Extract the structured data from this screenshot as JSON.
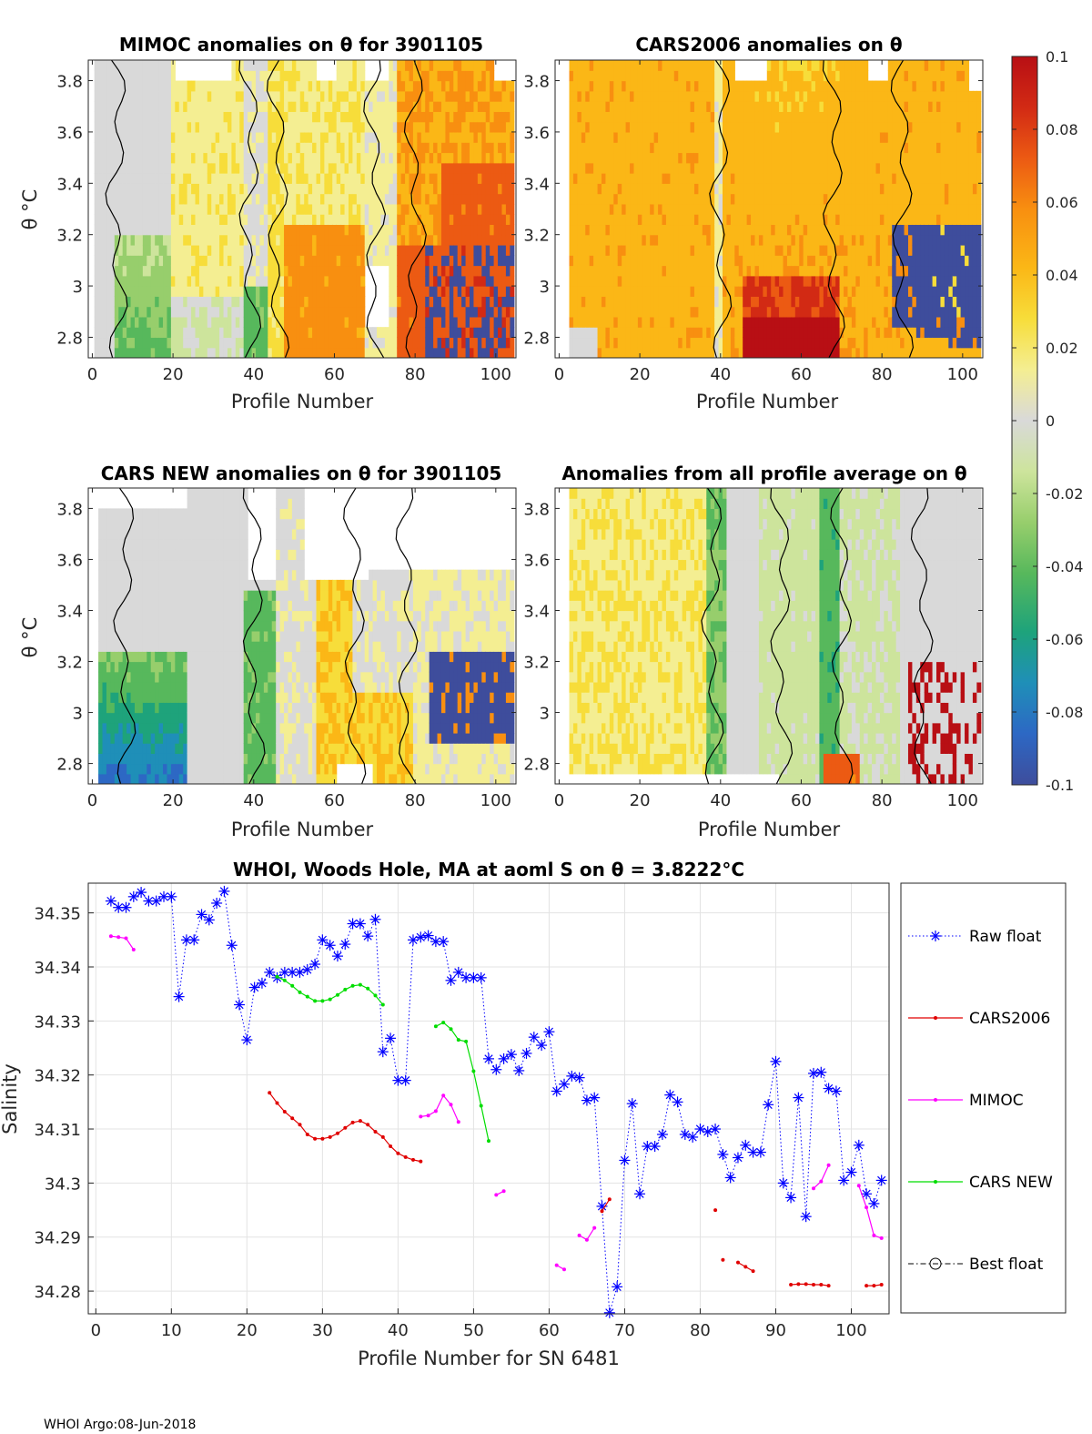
{
  "footer": "WHOI Argo:08-Jun-2018",
  "chart_data": [
    {
      "id": "p1",
      "type": "heatmap",
      "title": "MIMOC anomalies on θ  for 3901105",
      "xlabel": "Profile Number",
      "ylabel": "θ °C",
      "xlim": [
        -1,
        105
      ],
      "ylim": [
        2.72,
        3.88
      ],
      "xticks": [
        0,
        20,
        40,
        60,
        80,
        100
      ],
      "yticks": [
        2.8,
        3,
        3.2,
        3.4,
        3.6,
        3.8
      ],
      "ytick_labels": [
        "2.8",
        "3",
        "3.2",
        "3.4",
        "3.6",
        "3.8"
      ],
      "colorbar_range": [
        -0.1,
        0.1
      ]
    },
    {
      "id": "p2",
      "type": "heatmap",
      "title": "CARS2006 anomalies on θ",
      "xlabel": "Profile Number",
      "ylabel": "",
      "xlim": [
        -1,
        105
      ],
      "ylim": [
        2.72,
        3.88
      ],
      "xticks": [
        0,
        20,
        40,
        60,
        80,
        100
      ],
      "yticks": [
        2.8,
        3,
        3.2,
        3.4,
        3.6,
        3.8
      ],
      "ytick_labels": [
        "2.8",
        "3",
        "3.2",
        "3.4",
        "3.6",
        "3.8"
      ],
      "colorbar_range": [
        -0.1,
        0.1
      ]
    },
    {
      "id": "p3",
      "type": "heatmap",
      "title": "CARS NEW anomalies on θ for 3901105",
      "xlabel": "Profile Number",
      "ylabel": "θ °C",
      "xlim": [
        -1,
        105
      ],
      "ylim": [
        2.72,
        3.88
      ],
      "xticks": [
        0,
        20,
        40,
        60,
        80,
        100
      ],
      "yticks": [
        2.8,
        3,
        3.2,
        3.4,
        3.6,
        3.8
      ],
      "ytick_labels": [
        "2.8",
        "3",
        "3.2",
        "3.4",
        "3.6",
        "3.8"
      ],
      "colorbar_range": [
        -0.1,
        0.1
      ]
    },
    {
      "id": "p4",
      "type": "heatmap",
      "title": "Anomalies from all profile average on θ",
      "xlabel": "Profile Number",
      "ylabel": "",
      "xlim": [
        -1,
        105
      ],
      "ylim": [
        2.72,
        3.88
      ],
      "xticks": [
        0,
        20,
        40,
        60,
        80,
        100
      ],
      "yticks": [
        2.8,
        3,
        3.2,
        3.4,
        3.6,
        3.8
      ],
      "ytick_labels": [
        "2.8",
        "3",
        "3.2",
        "3.4",
        "3.6",
        "3.8"
      ],
      "colorbar_range": [
        -0.1,
        0.1
      ]
    },
    {
      "id": "colorbar",
      "type": "colorbar",
      "range": [
        -0.1,
        0.1
      ],
      "ticks": [
        0.1,
        0.08,
        0.06,
        0.04,
        0.02,
        0,
        -0.02,
        -0.04,
        -0.06,
        -0.08,
        -0.1
      ],
      "tick_labels": [
        "0.1",
        "0.08",
        "0.06",
        "0.04",
        "0.02",
        "0",
        "-0.02",
        "-0.04",
        "-0.06",
        "-0.08",
        "-0.1"
      ],
      "colormap": [
        "#3e4d9c",
        "#2d68c4",
        "#1f8fb8",
        "#1ea37b",
        "#57b85c",
        "#97ce6c",
        "#cde49c",
        "#d9d9d9",
        "#f4ee92",
        "#f7dd3a",
        "#fbb716",
        "#f88f10",
        "#ec5a13",
        "#d22a14",
        "#b80f14"
      ]
    },
    {
      "id": "p5",
      "type": "line",
      "title": "WHOI, Woods Hole, MA at aoml S on θ = 3.8222°C",
      "xlabel": "Profile Number for SN 6481",
      "ylabel": "Salinity",
      "xlim": [
        -1,
        105
      ],
      "ylim": [
        34.2758,
        34.3555
      ],
      "xticks": [
        0,
        10,
        20,
        30,
        40,
        50,
        60,
        70,
        80,
        90,
        100
      ],
      "yticks": [
        34.28,
        34.29,
        34.3,
        34.31,
        34.32,
        34.33,
        34.34,
        34.35
      ],
      "ytick_labels": [
        "34.28",
        "34.29",
        "34.3",
        "34.31",
        "34.32",
        "34.33",
        "34.34",
        "34.35"
      ],
      "legend_position": "outside-right",
      "series": [
        {
          "name": "Raw float",
          "color": "#0000ff",
          "style": "dotted-star",
          "points": [
            [
              2,
              34.3522
            ],
            [
              3,
              34.351
            ],
            [
              4,
              34.351
            ],
            [
              5,
              34.353
            ],
            [
              6,
              34.3538
            ],
            [
              7,
              34.3522
            ],
            [
              8,
              34.3522
            ],
            [
              9,
              34.353
            ],
            [
              10,
              34.353
            ],
            [
              11,
              34.3345
            ],
            [
              12,
              34.345
            ],
            [
              13,
              34.345
            ],
            [
              14,
              34.3497
            ],
            [
              15,
              34.3487
            ],
            [
              16,
              34.3518
            ],
            [
              17,
              34.354
            ],
            [
              18,
              34.344
            ],
            [
              19,
              34.333
            ],
            [
              20,
              34.3265
            ],
            [
              21,
              34.3362
            ],
            [
              22,
              34.337
            ],
            [
              23,
              34.339
            ],
            [
              24,
              34.338
            ],
            [
              25,
              34.339
            ],
            [
              26,
              34.339
            ],
            [
              27,
              34.339
            ],
            [
              28,
              34.3395
            ],
            [
              29,
              34.3405
            ],
            [
              30,
              34.345
            ],
            [
              31,
              34.344
            ],
            [
              32,
              34.342
            ],
            [
              33,
              34.3442
            ],
            [
              34,
              34.348
            ],
            [
              35,
              34.348
            ],
            [
              36,
              34.3457
            ],
            [
              37,
              34.3488
            ],
            [
              38,
              34.3243
            ],
            [
              39,
              34.3268
            ],
            [
              40,
              34.319
            ],
            [
              41,
              34.319
            ],
            [
              42,
              34.345
            ],
            [
              43,
              34.3455
            ],
            [
              44,
              34.3458
            ],
            [
              45,
              34.3447
            ],
            [
              46,
              34.3447
            ],
            [
              47,
              34.3375
            ],
            [
              48,
              34.339
            ],
            [
              49,
              34.338
            ],
            [
              50,
              34.338
            ],
            [
              51,
              34.338
            ],
            [
              52,
              34.323
            ],
            [
              53,
              34.321
            ],
            [
              54,
              34.323
            ],
            [
              55,
              34.3238
            ],
            [
              56,
              34.3208
            ],
            [
              57,
              34.324
            ],
            [
              58,
              34.327
            ],
            [
              59,
              34.3255
            ],
            [
              60,
              34.328
            ],
            [
              61,
              34.317
            ],
            [
              62,
              34.3183
            ],
            [
              63,
              34.3198
            ],
            [
              64,
              34.3195
            ],
            [
              65,
              34.3153
            ],
            [
              66,
              34.3158
            ],
            [
              67,
              34.2957
            ],
            [
              68,
              34.276
            ],
            [
              69,
              34.2808
            ],
            [
              70,
              34.3042
            ],
            [
              71,
              34.3147
            ],
            [
              72,
              34.298
            ],
            [
              73,
              34.3068
            ],
            [
              74,
              34.3068
            ],
            [
              75,
              34.309
            ],
            [
              76,
              34.3163
            ],
            [
              77,
              34.315
            ],
            [
              78,
              34.309
            ],
            [
              79,
              34.3085
            ],
            [
              80,
              34.31
            ],
            [
              81,
              34.3095
            ],
            [
              82,
              34.31
            ],
            [
              83,
              34.3053
            ],
            [
              84,
              34.301
            ],
            [
              85,
              34.3047
            ],
            [
              86,
              34.307
            ],
            [
              87,
              34.3057
            ],
            [
              88,
              34.3057
            ],
            [
              89,
              34.3145
            ],
            [
              90,
              34.3225
            ],
            [
              91,
              34.3
            ],
            [
              92,
              34.2973
            ],
            [
              93,
              34.3158
            ],
            [
              94,
              34.2938
            ],
            [
              95,
              34.3203
            ],
            [
              96,
              34.3205
            ],
            [
              97,
              34.3175
            ],
            [
              98,
              34.317
            ],
            [
              99,
              34.3005
            ],
            [
              100,
              34.302
            ],
            [
              101,
              34.307
            ],
            [
              102,
              34.298
            ],
            [
              103,
              34.2962
            ],
            [
              104,
              34.3005
            ]
          ]
        },
        {
          "name": "CARS2006",
          "color": "#e00000",
          "style": "solid-dot",
          "segments": [
            [
              [
                23,
                34.3167
              ],
              [
                24,
                34.3148
              ],
              [
                25,
                34.3132
              ],
              [
                26,
                34.312
              ],
              [
                27,
                34.3108
              ],
              [
                28,
                34.309
              ],
              [
                29,
                34.3082
              ],
              [
                30,
                34.3082
              ],
              [
                31,
                34.3085
              ],
              [
                32,
                34.3092
              ],
              [
                33,
                34.3102
              ],
              [
                34,
                34.3112
              ],
              [
                35,
                34.3115
              ],
              [
                36,
                34.3108
              ],
              [
                37,
                34.3095
              ],
              [
                38,
                34.3085
              ],
              [
                39,
                34.3068
              ],
              [
                40,
                34.3055
              ],
              [
                41,
                34.3048
              ],
              [
                42,
                34.3043
              ],
              [
                43,
                34.304
              ]
            ],
            [
              [
                67,
                34.2948
              ],
              [
                68,
                34.297
              ]
            ],
            [
              [
                82,
                34.295
              ]
            ],
            [
              [
                83,
                34.2858
              ]
            ],
            [
              [
                85,
                34.2853
              ],
              [
                86,
                34.2845
              ],
              [
                87,
                34.2837
              ]
            ],
            [
              [
                92,
                34.2812
              ],
              [
                93,
                34.2813
              ],
              [
                94,
                34.2813
              ],
              [
                95,
                34.2812
              ],
              [
                96,
                34.2812
              ],
              [
                97,
                34.281
              ]
            ],
            [
              [
                102,
                34.281
              ],
              [
                103,
                34.281
              ],
              [
                104,
                34.2812
              ]
            ]
          ]
        },
        {
          "name": "MIMOC",
          "color": "#ff00ff",
          "style": "solid-dot",
          "segments": [
            [
              [
                2,
                34.3457
              ],
              [
                3,
                34.3455
              ],
              [
                4,
                34.3453
              ],
              [
                5,
                34.3432
              ]
            ],
            [
              [
                43,
                34.3123
              ],
              [
                44,
                34.3125
              ],
              [
                45,
                34.3133
              ],
              [
                46,
                34.3162
              ],
              [
                47,
                34.3145
              ],
              [
                48,
                34.3113
              ]
            ],
            [
              [
                53,
                34.2978
              ],
              [
                54,
                34.2985
              ]
            ],
            [
              [
                61,
                34.2848
              ],
              [
                62,
                34.284
              ]
            ],
            [
              [
                64,
                34.2903
              ],
              [
                65,
                34.2895
              ],
              [
                66,
                34.2917
              ]
            ],
            [
              [
                95,
                34.299
              ],
              [
                96,
                34.3003
              ],
              [
                97,
                34.3033
              ]
            ],
            [
              [
                101,
                34.2995
              ],
              [
                102,
                34.2955
              ],
              [
                103,
                34.2903
              ],
              [
                104,
                34.2898
              ]
            ]
          ]
        },
        {
          "name": "CARS NEW",
          "color": "#00dd00",
          "style": "solid-dot",
          "segments": [
            [
              [
                24,
                34.3382
              ],
              [
                25,
                34.3375
              ],
              [
                26,
                34.3365
              ],
              [
                27,
                34.3353
              ],
              [
                28,
                34.3345
              ],
              [
                29,
                34.3337
              ],
              [
                30,
                34.3337
              ],
              [
                31,
                34.334
              ],
              [
                32,
                34.3348
              ],
              [
                33,
                34.3358
              ],
              [
                34,
                34.3365
              ],
              [
                35,
                34.3367
              ],
              [
                36,
                34.336
              ],
              [
                37,
                34.3347
              ],
              [
                38,
                34.333
              ]
            ],
            [
              [
                45,
                34.329
              ],
              [
                46,
                34.3297
              ],
              [
                47,
                34.3285
              ],
              [
                48,
                34.3265
              ],
              [
                49,
                34.3262
              ],
              [
                50,
                34.3207
              ],
              [
                51,
                34.3143
              ],
              [
                52,
                34.3078
              ]
            ]
          ]
        },
        {
          "name": "Best float",
          "color": "#000000",
          "style": "dashdot-circle",
          "points": []
        }
      ]
    }
  ]
}
